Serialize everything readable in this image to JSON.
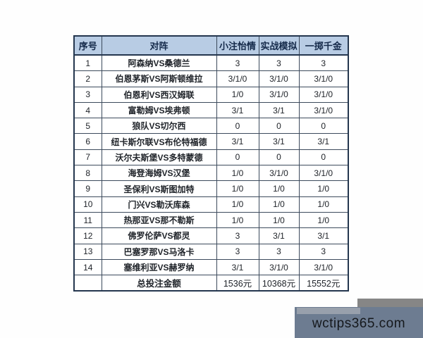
{
  "table": {
    "headers": [
      "序号",
      "对阵",
      "小注怡情",
      "实战模拟",
      "一掷千金"
    ],
    "rows": [
      {
        "no": "1",
        "match": "阿森纳VS桑德兰",
        "small": "3",
        "sim": "3",
        "big": "3"
      },
      {
        "no": "2",
        "match": "伯恩茅斯VS阿斯顿维拉",
        "small": "3/1/0",
        "sim": "3/1/0",
        "big": "3/1/0"
      },
      {
        "no": "3",
        "match": "伯恩利VS西汉姆联",
        "small": "1/0",
        "sim": "3/1/0",
        "big": "3/1/0"
      },
      {
        "no": "4",
        "match": "富勒姆VS埃弗顿",
        "small": "3/1",
        "sim": "3/1",
        "big": "3/1/0"
      },
      {
        "no": "5",
        "match": "狼队VS切尔西",
        "small": "0",
        "sim": "0",
        "big": "0"
      },
      {
        "no": "6",
        "match": "纽卡斯尔联VS布伦特福德",
        "small": "3/1",
        "sim": "3/1",
        "big": "3/1"
      },
      {
        "no": "7",
        "match": "沃尔夫斯堡VS多特蒙德",
        "small": "0",
        "sim": "0",
        "big": "0"
      },
      {
        "no": "8",
        "match": "海登海姆VS汉堡",
        "small": "1/0",
        "sim": "3/1/0",
        "big": "3/1/0"
      },
      {
        "no": "9",
        "match": "圣保利VS斯图加特",
        "small": "1/0",
        "sim": "1/0",
        "big": "1/0"
      },
      {
        "no": "10",
        "match": "门兴VS勒沃库森",
        "small": "1/0",
        "sim": "1/0",
        "big": "1/0"
      },
      {
        "no": "11",
        "match": "热那亚VS那不勒斯",
        "small": "1/0",
        "sim": "1/0",
        "big": "1/0"
      },
      {
        "no": "12",
        "match": "佛罗伦萨VS都灵",
        "small": "3",
        "sim": "3/1",
        "big": "3/1"
      },
      {
        "no": "13",
        "match": "巴塞罗那VS马洛卡",
        "small": "3",
        "sim": "3",
        "big": "3"
      },
      {
        "no": "14",
        "match": "塞维利亚VS赫罗纳",
        "small": "3/1",
        "sim": "3/1/0",
        "big": "3/1/0"
      }
    ],
    "total": {
      "no": "",
      "label": "总投注金额",
      "small": "1536元",
      "sim": "10368元",
      "big": "15552元"
    }
  },
  "watermark": {
    "text": "wctips365.com"
  },
  "colors": {
    "header_bg": "#b8cce4",
    "border": "#24364e",
    "watermark_box": "#6d7c91",
    "watermark_back": "#868686"
  }
}
